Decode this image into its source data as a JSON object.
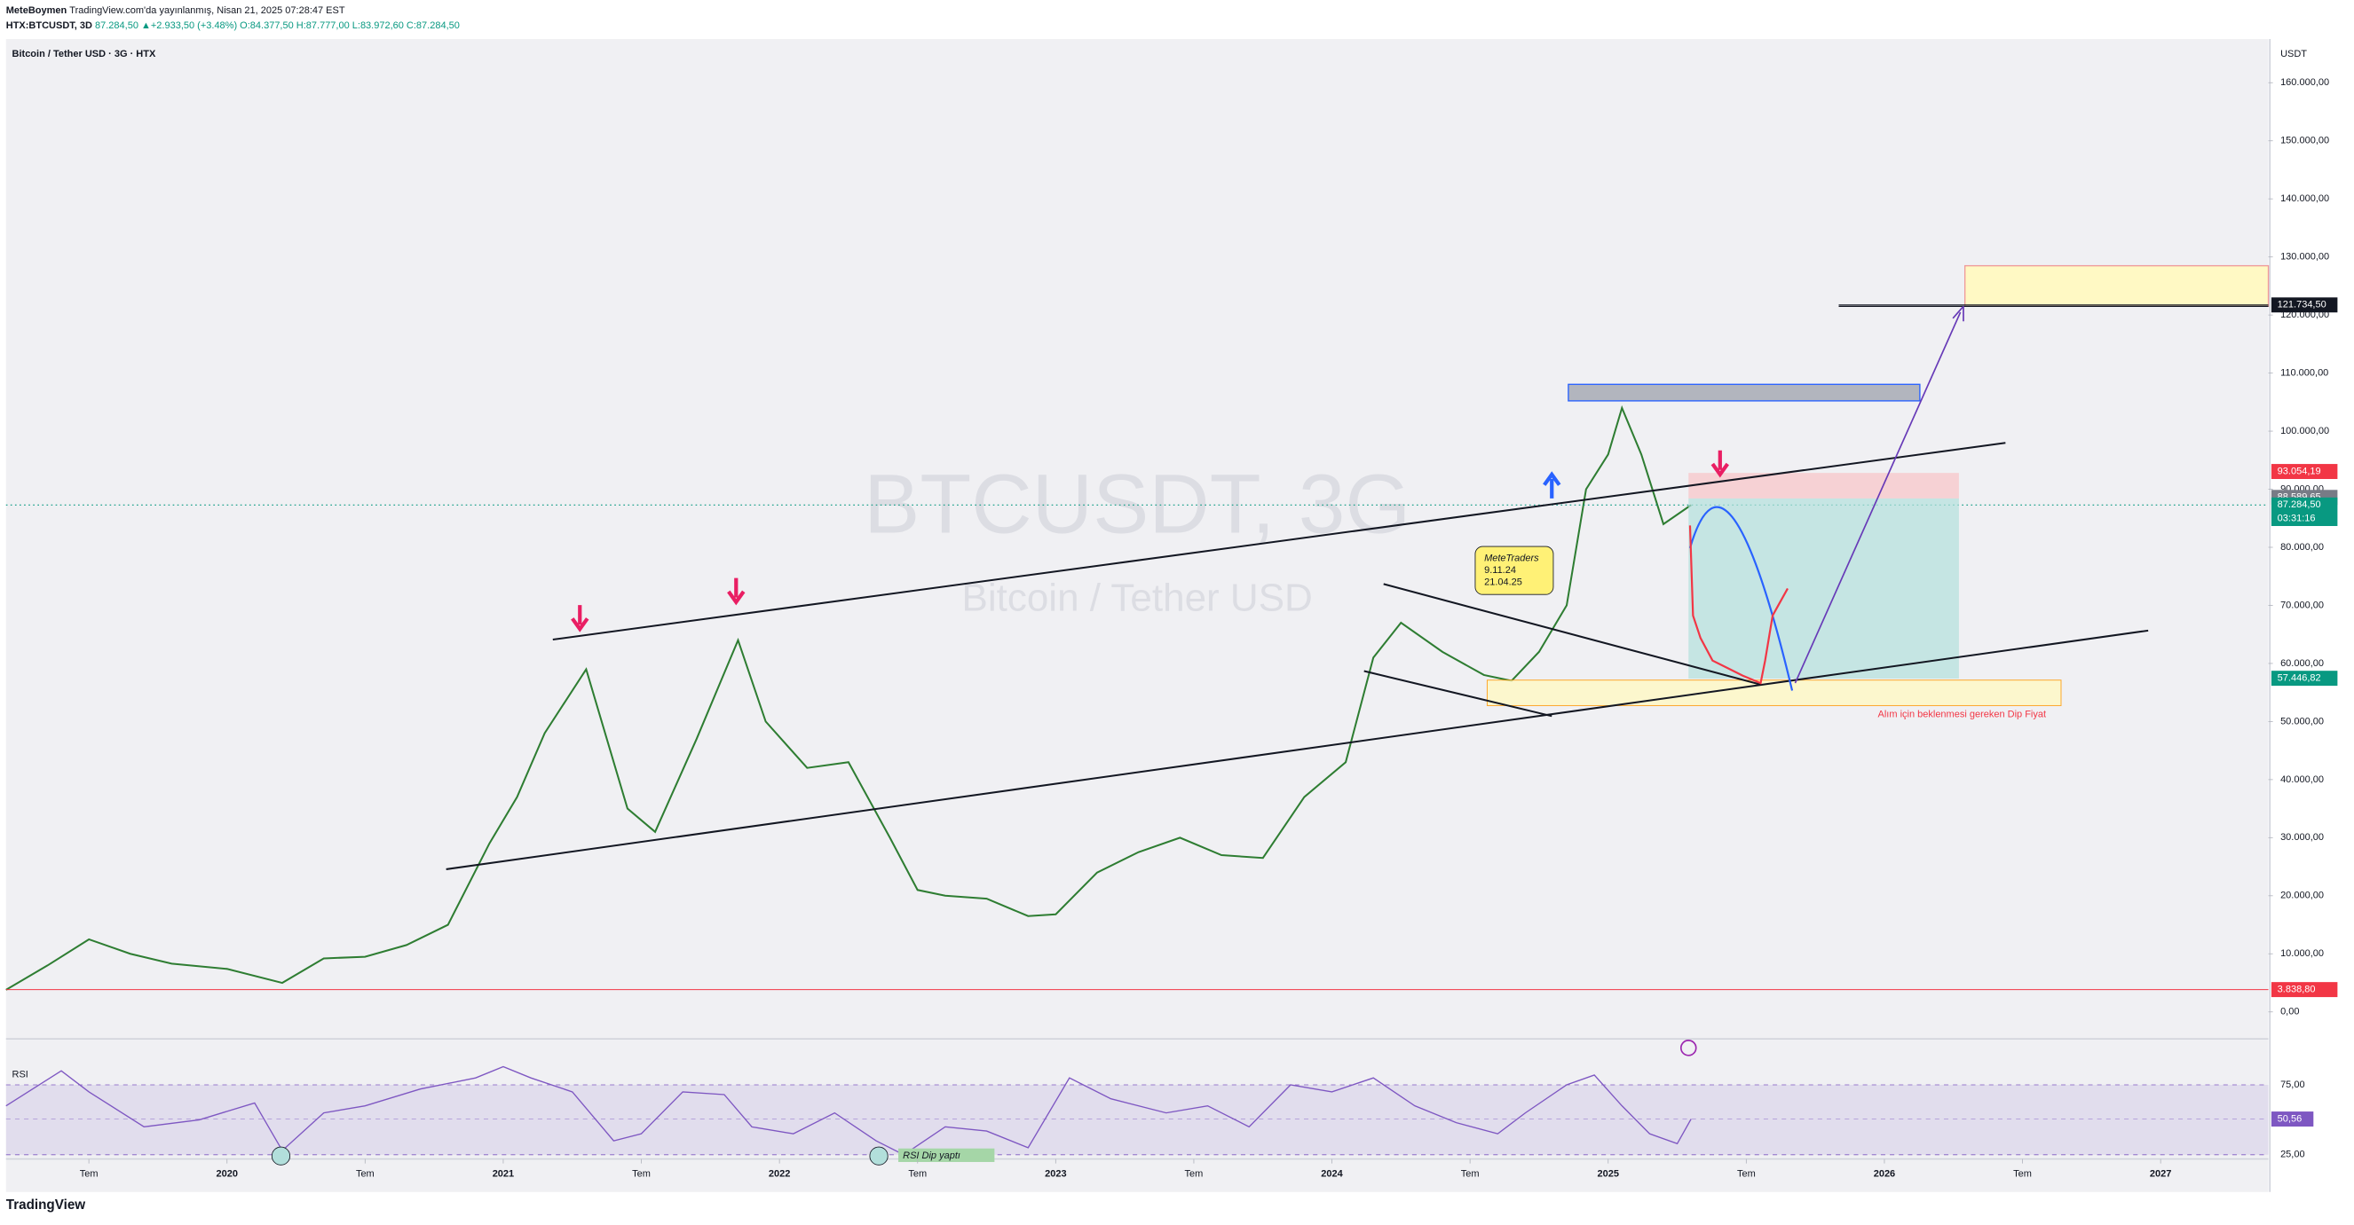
{
  "header": {
    "publisher_name": "MeteBoymen",
    "publisher_note": "TradingView.com'da yayınlanmış, Nisan 21, 2025 07:28:47 EST",
    "symbol": "HTX:BTCUSDT, 3D",
    "ohlc": "87.284,50 ▲+2.933,50 (+3.48%) O:84.377,50 H:87.777,00 L:83.972,60 C:87.284,50"
  },
  "footer": {
    "brand": "TradingView"
  },
  "chart_data": [
    {
      "type": "line",
      "legend_title": "Bitcoin / Tether USD · 3G · HTX",
      "axis_unit": "USDT",
      "watermark": "BTCUSDT, 3G",
      "watermark_sub": "Bitcoin / Tether USD",
      "annotations": [
        "MeteTraders",
        "9.11.24",
        "21.04.25"
      ],
      "dip_note": "Alım için beklenmesi gereken Dip Fiyat",
      "xlim": [
        2019.2,
        2027.39
      ],
      "xticks": [
        {
          "value": 2019.5,
          "label": "Tem"
        },
        2020,
        {
          "value": 2020.5,
          "label": "Tem"
        },
        2021,
        {
          "value": 2021.5,
          "label": "Tem"
        },
        2022,
        {
          "value": 2022.5,
          "label": "Tem"
        },
        2023,
        {
          "value": 2023.5,
          "label": "Tem"
        },
        2024,
        {
          "value": 2024.5,
          "label": "Tem"
        },
        2025,
        {
          "value": 2025.5,
          "label": "Tem"
        },
        2026,
        {
          "value": 2026.5,
          "label": "Tem"
        },
        2027
      ],
      "ylim": [
        -4650,
        167000
      ],
      "yticks": [
        {
          "value": 0,
          "label": "0,00"
        },
        {
          "value": 10000,
          "label": "10.000,00"
        },
        {
          "value": 20000,
          "label": "20.000,00"
        },
        {
          "value": 30000,
          "label": "30.000,00"
        },
        {
          "value": 40000,
          "label": "40.000,00"
        },
        {
          "value": 50000,
          "label": "50.000,00"
        },
        {
          "value": 60000,
          "label": "60.000,00"
        },
        {
          "value": 70000,
          "label": "70.000,00"
        },
        {
          "value": 80000,
          "label": "80.000,00"
        },
        {
          "value": 90000,
          "label": "90.000,00"
        },
        {
          "value": 100000,
          "label": "100.000,00"
        },
        {
          "value": 110000,
          "label": "110.000,00"
        },
        {
          "value": 120000,
          "label": "120.000,00"
        },
        {
          "value": 130000,
          "label": "130.000,00"
        },
        {
          "value": 140000,
          "label": "140.000,00"
        },
        {
          "value": 150000,
          "label": "150.000,00"
        },
        {
          "value": 160000,
          "label": "160.000,00"
        }
      ],
      "x": [
        2019.2,
        2019.35,
        2019.5,
        2019.65,
        2019.8,
        2020.0,
        2020.2,
        2020.35,
        2020.5,
        2020.65,
        2020.8,
        2020.95,
        2021.05,
        2021.15,
        2021.3,
        2021.45,
        2021.55,
        2021.7,
        2021.85,
        2021.95,
        2022.1,
        2022.25,
        2022.4,
        2022.5,
        2022.6,
        2022.75,
        2022.9,
        2023.0,
        2023.15,
        2023.3,
        2023.45,
        2023.6,
        2023.75,
        2023.9,
        2024.05,
        2024.15,
        2024.25,
        2024.4,
        2024.55,
        2024.65,
        2024.75,
        2024.85,
        2024.92,
        2025.0,
        2025.05,
        2025.12,
        2025.2,
        2025.3
      ],
      "series": [
        {
          "name": "BTCUSDT",
          "color": "#2e7d32",
          "values": [
            3800,
            8000,
            12500,
            10000,
            8300,
            7400,
            5000,
            9200,
            9500,
            11500,
            15000,
            29000,
            37000,
            48000,
            59000,
            35000,
            31000,
            47000,
            64000,
            50000,
            42000,
            43000,
            30000,
            21000,
            20000,
            19500,
            16500,
            16800,
            24000,
            27500,
            30000,
            27000,
            26500,
            37000,
            43000,
            61000,
            67000,
            62000,
            58000,
            57000,
            62000,
            70000,
            90000,
            96000,
            104000,
            96000,
            84000,
            87284.5
          ]
        }
      ],
      "price_labels": [
        {
          "value": 121734.5,
          "label": "121.734,50",
          "color": "#131722"
        },
        {
          "value": 93054.19,
          "label": "93.054,19",
          "color": "#f23645"
        },
        {
          "value": 88589.65,
          "label": "88.589,65",
          "color": "#787b86"
        },
        {
          "value": 87284.5,
          "label": "87.284,50",
          "color": "#089981",
          "countdown": "03:31:16"
        },
        {
          "value": 57446.82,
          "label": "57.446,82",
          "color": "#089981"
        },
        {
          "value": 3838.8,
          "label": "3.838,80",
          "color": "#f23645"
        }
      ]
    },
    {
      "type": "line",
      "title": "RSI",
      "note": "RSI Dip yaptı",
      "xlim": [
        2019.2,
        2027.39
      ],
      "ylim": [
        22,
        110
      ],
      "yticks": [
        {
          "value": 75,
          "label": "75,00"
        },
        {
          "value": 25,
          "label": "25,00"
        }
      ],
      "last_label": {
        "value": 50.56,
        "label": "50,56"
      },
      "x": [
        2019.2,
        2019.4,
        2019.5,
        2019.7,
        2019.9,
        2020.1,
        2020.2,
        2020.35,
        2020.5,
        2020.7,
        2020.9,
        2021.0,
        2021.1,
        2021.25,
        2021.4,
        2021.5,
        2021.65,
        2021.8,
        2021.9,
        2022.05,
        2022.2,
        2022.35,
        2022.45,
        2022.6,
        2022.75,
        2022.9,
        2023.05,
        2023.2,
        2023.4,
        2023.55,
        2023.7,
        2023.85,
        2024.0,
        2024.15,
        2024.3,
        2024.45,
        2024.6,
        2024.7,
        2024.85,
        2024.95,
        2025.05,
        2025.15,
        2025.25,
        2025.3
      ],
      "series": [
        {
          "name": "RSI",
          "color": "#7e57c2",
          "values": [
            60,
            85,
            70,
            45,
            50,
            62,
            28,
            55,
            60,
            72,
            80,
            88,
            80,
            70,
            35,
            40,
            70,
            68,
            45,
            40,
            55,
            35,
            25,
            45,
            42,
            30,
            80,
            65,
            55,
            60,
            45,
            75,
            70,
            80,
            60,
            48,
            40,
            55,
            75,
            82,
            60,
            40,
            33,
            50.56
          ]
        }
      ]
    }
  ]
}
